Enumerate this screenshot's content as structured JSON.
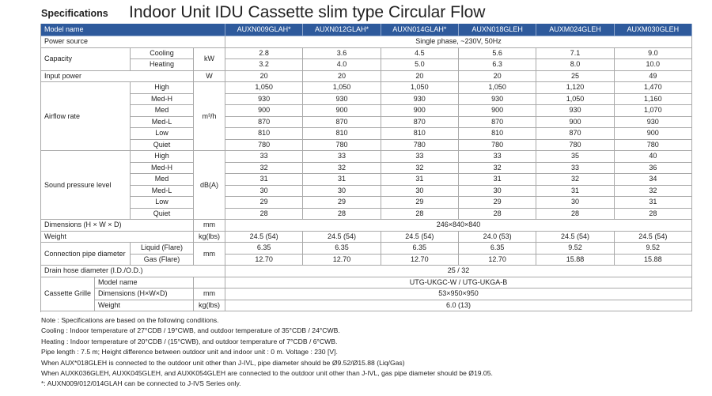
{
  "header": {
    "section": "Specifications",
    "title": "Indoor Unit IDU Cassette slim type Circular Flow"
  },
  "table": {
    "columns": [
      "Model name",
      "AUXN009GLAH*",
      "AUXN012GLAH*",
      "AUXN014GLAH*",
      "AUXN018GLEH",
      "AUXM024GLEH",
      "AUXM030GLEH"
    ],
    "rows": [
      {
        "label": "Power source",
        "values": [
          "Single phase, ~230V, 50Hz"
        ]
      },
      {
        "label": "Capacity",
        "unit": "kW",
        "items": [
          {
            "label": "Cooling",
            "values": [
              "2.8",
              "3.6",
              "4.5",
              "5.6",
              "7.1",
              "9.0"
            ]
          },
          {
            "label": "Heating",
            "values": [
              "3.2",
              "4.0",
              "5.0",
              "6.3",
              "8.0",
              "10.0"
            ]
          }
        ]
      },
      {
        "label": "Input power",
        "unit": "W",
        "values": [
          "20",
          "20",
          "20",
          "20",
          "25",
          "49"
        ]
      },
      {
        "label": "Airflow rate",
        "unit": "m³/h",
        "items": [
          {
            "label": "High",
            "values": [
              "1,050",
              "1,050",
              "1,050",
              "1,050",
              "1,120",
              "1,470"
            ]
          },
          {
            "label": "Med-H",
            "values": [
              "930",
              "930",
              "930",
              "930",
              "1,050",
              "1,160"
            ]
          },
          {
            "label": "Med",
            "values": [
              "900",
              "900",
              "900",
              "900",
              "930",
              "1,070"
            ]
          },
          {
            "label": "Med-L",
            "values": [
              "870",
              "870",
              "870",
              "870",
              "900",
              "930"
            ]
          },
          {
            "label": "Low",
            "values": [
              "810",
              "810",
              "810",
              "810",
              "870",
              "900"
            ]
          },
          {
            "label": "Quiet",
            "values": [
              "780",
              "780",
              "780",
              "780",
              "780",
              "780"
            ]
          }
        ]
      },
      {
        "label": "Sound pressure level",
        "unit": "dB(A)",
        "items": [
          {
            "label": "High",
            "values": [
              "33",
              "33",
              "33",
              "33",
              "35",
              "40"
            ]
          },
          {
            "label": "Med-H",
            "values": [
              "32",
              "32",
              "32",
              "32",
              "33",
              "36"
            ]
          },
          {
            "label": "Med",
            "values": [
              "31",
              "31",
              "31",
              "31",
              "32",
              "34"
            ]
          },
          {
            "label": "Med-L",
            "values": [
              "30",
              "30",
              "30",
              "30",
              "31",
              "32"
            ]
          },
          {
            "label": "Low",
            "values": [
              "29",
              "29",
              "29",
              "29",
              "30",
              "31"
            ]
          },
          {
            "label": "Quiet",
            "values": [
              "28",
              "28",
              "28",
              "28",
              "28",
              "28"
            ]
          }
        ]
      },
      {
        "label": "Dimensions (H × W × D)",
        "unit": "mm",
        "values": [
          "246×840×840"
        ]
      },
      {
        "label": "Weight",
        "unit": "kg(lbs)",
        "values": [
          "24.5 (54)",
          "24.5 (54)",
          "24.5 (54)",
          "24.0 (53)",
          "24.5 (54)",
          "24.5 (54)"
        ]
      },
      {
        "label": "Connection pipe diameter",
        "unit": "mm",
        "items": [
          {
            "label": "Liquid (Flare)",
            "values": [
              "6.35",
              "6.35",
              "6.35",
              "6.35",
              "9.52",
              "9.52"
            ]
          },
          {
            "label": "Gas (Flare)",
            "values": [
              "12.70",
              "12.70",
              "12.70",
              "12.70",
              "15.88",
              "15.88"
            ]
          }
        ]
      },
      {
        "label": "Drain hose diameter (I.D./O.D.)",
        "values": [
          "25 / 32"
        ]
      },
      {
        "label": "Cassette Grille",
        "items": [
          {
            "label": "Model name",
            "values": [
              "UTG-UKGC-W / UTG-UKGA-B"
            ]
          },
          {
            "label": "Dimensions (H×W×D)",
            "unit": "mm",
            "values": [
              "53×950×950"
            ]
          },
          {
            "label": "Weight",
            "unit": "kg(lbs)",
            "values": [
              "6.0 (13)"
            ]
          }
        ]
      }
    ]
  },
  "notes": [
    "Note : Specifications are based on the following conditions.",
    "Cooling : Indoor temperature of 27°CDB / 19°CWB, and outdoor temperature of 35°CDB / 24°CWB.",
    "Heating : Indoor temperature of 20°CDB / (15°CWB), and outdoor temperature of 7°CDB / 6°CWB.",
    "Pipe length : 7.5 m; Height difference between outdoor unit and indoor unit : 0 m.  Voltage : 230 [V].",
    "When AUX*018GLEH is connected to the outdoor unit other than J-IVL, pipe diameter should be Ø9.52/Ø15.88 (Liq/Gas)",
    "When AUXK036GLEH, AUXK045GLEH, and AUXK054GLEH are connected to the outdoor unit other than J-IVL, gas pipe diameter should be Ø19.05.",
    "*: AUXN009/012/014GLAH can be connected to J-IVS Series only."
  ]
}
